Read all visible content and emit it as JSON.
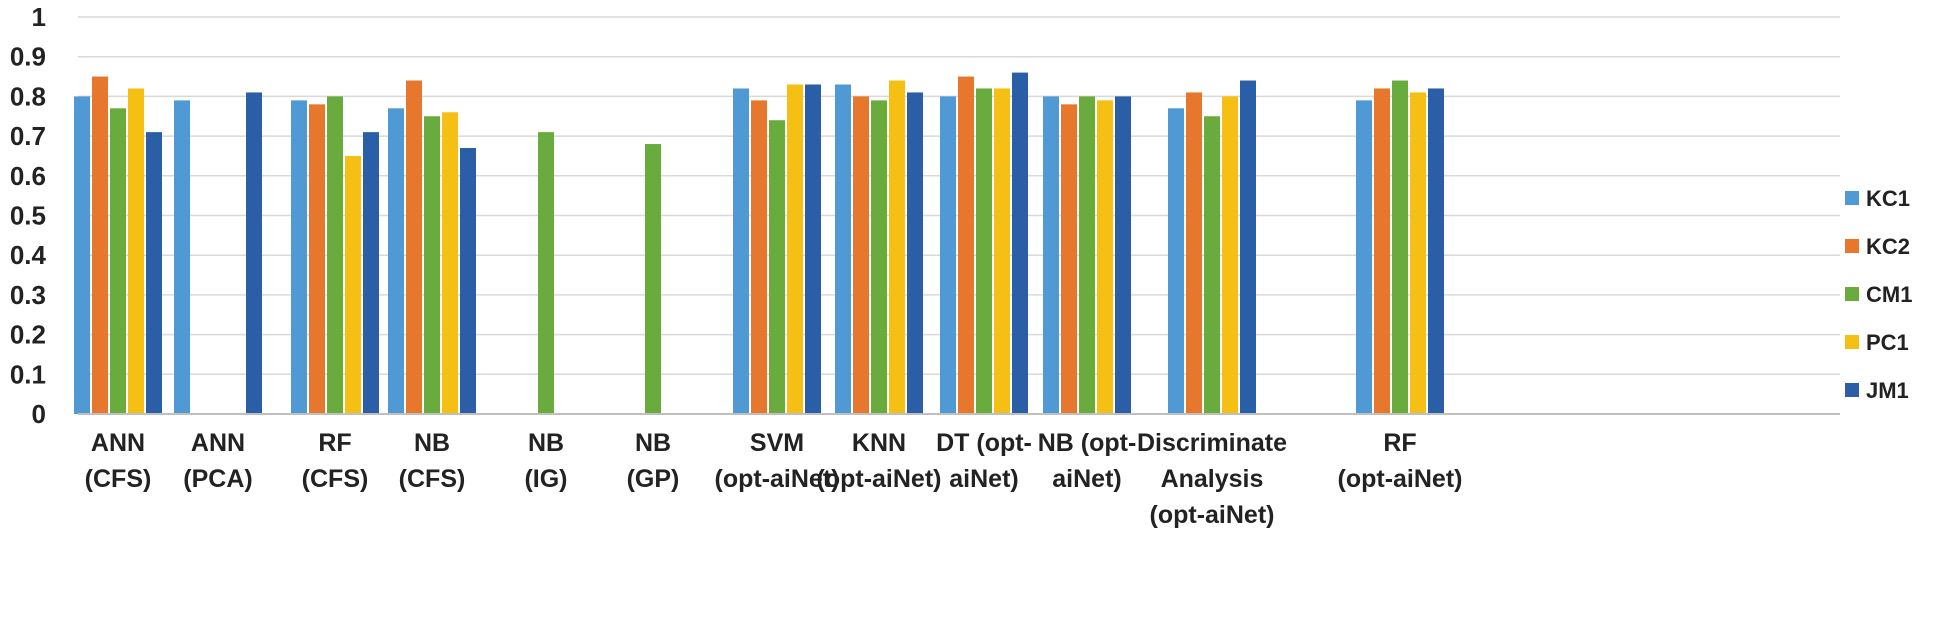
{
  "chart_data": {
    "type": "bar",
    "categories": [
      [
        "ANN",
        "(CFS)"
      ],
      [
        "ANN",
        "(PCA)"
      ],
      [
        "RF",
        "(CFS)"
      ],
      [
        "NB",
        "(CFS)"
      ],
      [
        "NB",
        "(IG)"
      ],
      [
        "NB",
        "(GP)"
      ],
      [
        "SVM",
        "(opt-aiNet)"
      ],
      [
        "KNN",
        "(opt-aiNet)"
      ],
      [
        "DT (opt-",
        "aiNet)"
      ],
      [
        "NB (opt-",
        "aiNet)"
      ],
      [
        "Discriminate",
        "Analysis",
        "(opt-aiNet)"
      ],
      [
        "RF",
        "(opt-aiNet)"
      ]
    ],
    "series": [
      {
        "name": "KC1",
        "color": "#4F9AD4",
        "values": [
          0.8,
          0.79,
          0.79,
          0.77,
          null,
          null,
          0.82,
          0.83,
          0.8,
          0.8,
          0.77,
          0.79
        ]
      },
      {
        "name": "KC2",
        "color": "#E8772E",
        "values": [
          0.85,
          null,
          0.78,
          0.84,
          null,
          null,
          0.79,
          0.8,
          0.85,
          0.78,
          0.81,
          0.82
        ]
      },
      {
        "name": "CM1",
        "color": "#6AAB3E",
        "values": [
          0.77,
          null,
          0.8,
          0.75,
          0.71,
          0.68,
          0.74,
          0.79,
          0.82,
          0.8,
          0.75,
          0.84
        ]
      },
      {
        "name": "PC1",
        "color": "#F5BF14",
        "values": [
          0.82,
          null,
          0.65,
          0.76,
          null,
          null,
          0.83,
          0.84,
          0.82,
          0.79,
          0.8,
          0.81
        ]
      },
      {
        "name": "JM1",
        "color": "#2A5FA8",
        "values": [
          0.71,
          0.81,
          0.71,
          0.67,
          null,
          null,
          0.83,
          0.81,
          0.86,
          0.8,
          0.84,
          0.82
        ]
      }
    ],
    "yticks": [
      "0",
      "0.1",
      "0.2",
      "0.3",
      "0.4",
      "0.5",
      "0.6",
      "0.7",
      "0.8",
      "0.9",
      "1"
    ],
    "ylim": [
      0,
      1
    ],
    "grid": true,
    "legend": "right",
    "title": "",
    "xlabel": "",
    "ylabel": ""
  }
}
